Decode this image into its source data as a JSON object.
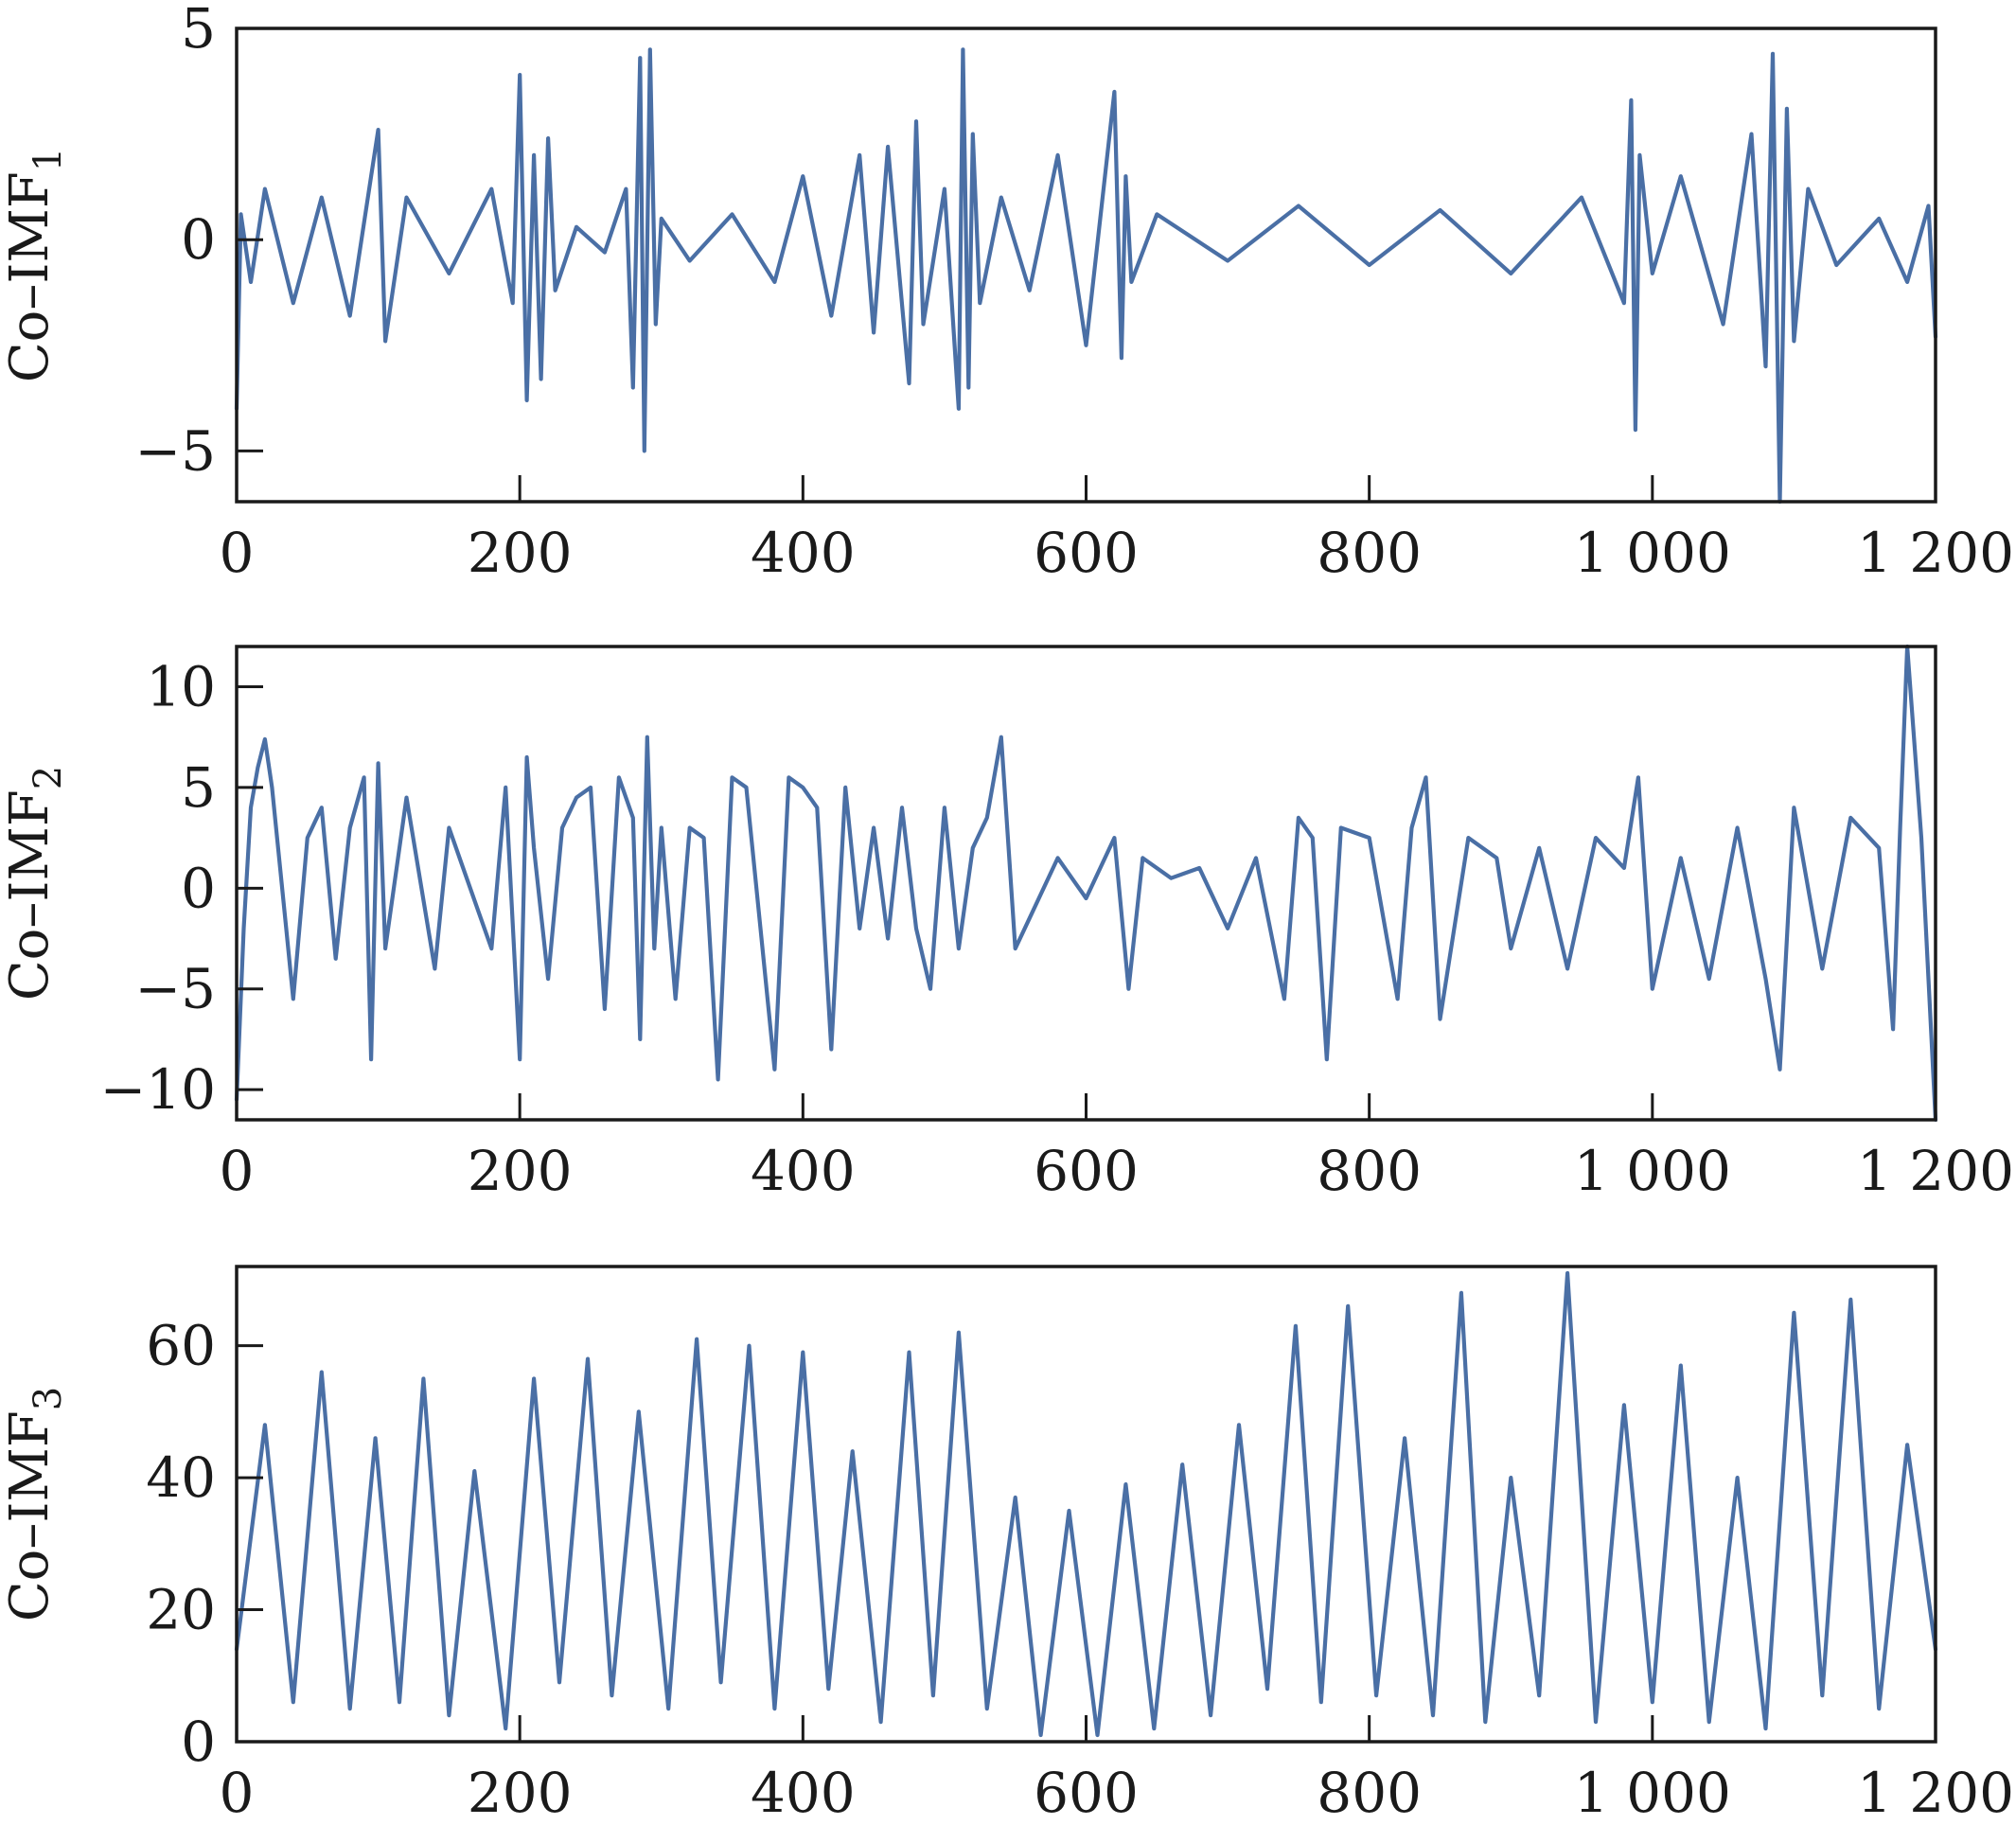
{
  "chart_data": [
    {
      "type": "line",
      "ylabel": "Co–IMF",
      "ylabel_subscript": "1",
      "xlim": [
        0,
        1200
      ],
      "ylim": [
        -6.2,
        5
      ],
      "xticks": [
        0,
        200,
        400,
        600,
        800,
        1000,
        1200
      ],
      "xtick_labels": [
        "0",
        "200",
        "400",
        "600",
        "800",
        "1 000",
        "1 200"
      ],
      "yticks": [
        -5,
        0,
        5
      ],
      "ytick_labels": [
        "−5",
        "0",
        "5"
      ],
      "grid": false,
      "color": "#4a6fa5",
      "series": [
        {
          "x": [
            0,
            3,
            10,
            20,
            40,
            60,
            80,
            95,
            100,
            105,
            120,
            150,
            180,
            195,
            200,
            205,
            210,
            215,
            220,
            225,
            240,
            260,
            275,
            280,
            285,
            288,
            292,
            296,
            300,
            320,
            350,
            380,
            400,
            420,
            440,
            450,
            460,
            475,
            480,
            485,
            500,
            510,
            513,
            517,
            520,
            525,
            540,
            560,
            580,
            600,
            620,
            625,
            628,
            632,
            650,
            700,
            750,
            800,
            850,
            900,
            950,
            980,
            985,
            988,
            991,
            1000,
            1020,
            1050,
            1070,
            1080,
            1085,
            1090,
            1095,
            1100,
            1110,
            1130,
            1160,
            1180,
            1195,
            1200
          ],
          "y": [
            -4.0,
            0.6,
            -1.0,
            1.2,
            -1.5,
            1.0,
            -1.8,
            1.5,
            2.6,
            -2.4,
            1.0,
            -0.8,
            1.2,
            -1.5,
            3.9,
            -3.8,
            2.0,
            -3.3,
            2.4,
            -1.2,
            0.3,
            -0.3,
            1.2,
            -3.5,
            4.3,
            -5.0,
            4.5,
            -2.0,
            0.5,
            -0.5,
            0.6,
            -1.0,
            1.5,
            -1.8,
            2.0,
            -2.2,
            2.2,
            -3.4,
            2.8,
            -2.0,
            1.2,
            -4.0,
            4.5,
            -3.5,
            2.5,
            -1.5,
            1.0,
            -1.2,
            2.0,
            -2.5,
            3.5,
            -2.8,
            1.5,
            -1.0,
            0.6,
            -0.5,
            0.8,
            -0.6,
            0.7,
            -0.8,
            1.0,
            -1.5,
            3.3,
            -4.5,
            2.0,
            -0.8,
            1.5,
            -2.0,
            2.5,
            -3.0,
            4.4,
            -6.2,
            3.1,
            -2.4,
            1.2,
            -0.6,
            0.5,
            -1.0,
            0.8,
            -2.3
          ]
        }
      ]
    },
    {
      "type": "line",
      "ylabel": "Co–IMF",
      "ylabel_subscript": "2",
      "xlim": [
        0,
        1200
      ],
      "ylim": [
        -11.5,
        12
      ],
      "xticks": [
        0,
        200,
        400,
        600,
        800,
        1000,
        1200
      ],
      "xtick_labels": [
        "0",
        "200",
        "400",
        "600",
        "800",
        "1 000",
        "1 200"
      ],
      "yticks": [
        -10,
        -5,
        0,
        5,
        10
      ],
      "ytick_labels": [
        "−10",
        "−5",
        "0",
        "5",
        "10"
      ],
      "grid": false,
      "color": "#4a6fa5",
      "series": [
        {
          "x": [
            0,
            5,
            10,
            15,
            20,
            25,
            35,
            40,
            50,
            60,
            70,
            80,
            90,
            95,
            100,
            105,
            120,
            140,
            150,
            160,
            180,
            190,
            200,
            205,
            210,
            220,
            230,
            240,
            250,
            260,
            270,
            280,
            285,
            290,
            295,
            300,
            310,
            320,
            330,
            340,
            350,
            360,
            370,
            380,
            390,
            400,
            410,
            420,
            430,
            440,
            450,
            460,
            470,
            480,
            490,
            500,
            510,
            520,
            530,
            540,
            550,
            560,
            580,
            600,
            620,
            630,
            640,
            660,
            680,
            700,
            720,
            740,
            750,
            760,
            770,
            780,
            800,
            820,
            830,
            840,
            850,
            870,
            890,
            900,
            920,
            940,
            960,
            980,
            990,
            1000,
            1020,
            1040,
            1060,
            1080,
            1090,
            1100,
            1120,
            1140,
            1160,
            1170,
            1175,
            1180,
            1190,
            1200
          ],
          "y": [
            -10.5,
            -2.0,
            4.0,
            6.0,
            7.4,
            5.0,
            -2.0,
            -5.5,
            2.5,
            4.0,
            -3.5,
            3.0,
            5.5,
            -8.5,
            6.2,
            -3.0,
            4.5,
            -4.0,
            3.0,
            1.0,
            -3.0,
            5.0,
            -8.5,
            6.5,
            2.0,
            -4.5,
            3.0,
            4.5,
            5.0,
            -6.0,
            5.5,
            3.5,
            -7.5,
            7.5,
            -3.0,
            3.0,
            -5.5,
            3.0,
            2.5,
            -9.5,
            5.5,
            5.0,
            -2.0,
            -9.0,
            5.5,
            5.0,
            4.0,
            -8.0,
            5.0,
            -2.0,
            3.0,
            -2.5,
            4.0,
            -2.0,
            -5.0,
            4.0,
            -3.0,
            2.0,
            3.5,
            7.5,
            -3.0,
            -1.5,
            1.5,
            -0.5,
            2.5,
            -5.0,
            1.5,
            0.5,
            1.0,
            -2.0,
            1.5,
            -5.5,
            3.5,
            2.5,
            -8.5,
            3.0,
            2.5,
            -5.5,
            3.0,
            5.5,
            -6.5,
            2.5,
            1.5,
            -3.0,
            2.0,
            -4.0,
            2.5,
            1.0,
            5.5,
            -5.0,
            1.5,
            -4.5,
            3.0,
            -4.5,
            -9.0,
            4.0,
            -4.0,
            3.5,
            2.0,
            -7.0,
            3.0,
            12.0,
            2.5,
            -11.5
          ]
        }
      ]
    },
    {
      "type": "line",
      "ylabel": "Co–IMF",
      "ylabel_subscript": "3",
      "xlim": [
        0,
        1200
      ],
      "ylim": [
        0,
        72
      ],
      "xticks": [
        0,
        200,
        400,
        600,
        800,
        1000,
        1200
      ],
      "xtick_labels": [
        "0",
        "200",
        "400",
        "600",
        "800",
        "1 000",
        "1 200"
      ],
      "yticks": [
        0,
        20,
        40,
        60
      ],
      "ytick_labels": [
        "0",
        "20",
        "40",
        "60"
      ],
      "grid": false,
      "color": "#4a6fa5",
      "series": [
        {
          "x": [
            0,
            20,
            40,
            60,
            80,
            98,
            115,
            132,
            150,
            168,
            190,
            210,
            228,
            248,
            265,
            284,
            305,
            325,
            342,
            362,
            380,
            400,
            418,
            435,
            455,
            475,
            492,
            510,
            530,
            550,
            568,
            588,
            608,
            628,
            648,
            668,
            688,
            708,
            728,
            748,
            766,
            785,
            805,
            825,
            845,
            865,
            882,
            900,
            920,
            940,
            960,
            980,
            1000,
            1020,
            1040,
            1060,
            1080,
            1100,
            1120,
            1140,
            1160,
            1180,
            1200
          ],
          "y": [
            14,
            48,
            6,
            56,
            5,
            46,
            6,
            55,
            4,
            41,
            2,
            55,
            9,
            58,
            7,
            50,
            5,
            61,
            9,
            60,
            5,
            59,
            8,
            44,
            3,
            59,
            7,
            62,
            5,
            37,
            1,
            35,
            1,
            39,
            2,
            42,
            4,
            48,
            8,
            63,
            6,
            66,
            7,
            46,
            4,
            68,
            3,
            40,
            7,
            71,
            3,
            51,
            6,
            57,
            3,
            40,
            2,
            65,
            7,
            67,
            5,
            45,
            14
          ]
        }
      ]
    }
  ]
}
